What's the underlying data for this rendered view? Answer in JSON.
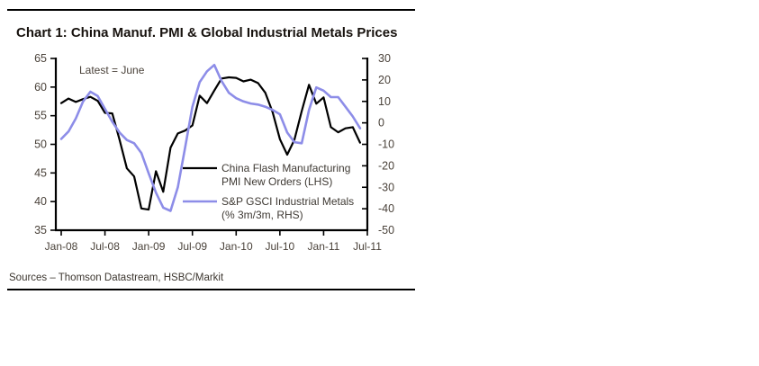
{
  "header": {
    "title": "Chart 1: China Manuf. PMI & Global Industrial Metals Prices"
  },
  "footer": {
    "sources": "Sources – Thomson Datastream, HSBC/Markit"
  },
  "colors": {
    "pmi_line": "#000000",
    "metals_line": "#8d8de8",
    "axis": "#000000",
    "tick_label": "#4a423a",
    "annotation_text": "#4a423a",
    "legend_text": "#3f3a34"
  },
  "chart_data": {
    "type": "line",
    "title": "Chart 1: China Manuf. PMI & Global Industrial Metals Prices",
    "annotation": "Latest = June",
    "grid": false,
    "legend_position": "inside-right-middle",
    "x_tick_labels": [
      "Jan-08",
      "Jul-08",
      "Jan-09",
      "Jul-09",
      "Jan-10",
      "Jul-10",
      "Jan-11",
      "Jul-11"
    ],
    "left_axis": {
      "label": "PMI (LHS)",
      "min": 35,
      "max": 65,
      "ticks": [
        65,
        60,
        55,
        50,
        45,
        40,
        35
      ]
    },
    "right_axis": {
      "label": "% 3m/3m (RHS)",
      "min": -50,
      "max": 30,
      "ticks": [
        30,
        20,
        10,
        0,
        -10,
        -20,
        -30,
        -40,
        -50
      ]
    },
    "x": [
      "Jan-08",
      "Feb-08",
      "Mar-08",
      "Apr-08",
      "May-08",
      "Jun-08",
      "Jul-08",
      "Aug-08",
      "Sep-08",
      "Oct-08",
      "Nov-08",
      "Dec-08",
      "Jan-09",
      "Feb-09",
      "Mar-09",
      "Apr-09",
      "May-09",
      "Jun-09",
      "Jul-09",
      "Aug-09",
      "Sep-09",
      "Oct-09",
      "Nov-09",
      "Dec-09",
      "Jan-10",
      "Feb-10",
      "Mar-10",
      "Apr-10",
      "May-10",
      "Jun-10",
      "Jul-10",
      "Aug-10",
      "Sep-10",
      "Oct-10",
      "Nov-10",
      "Dec-10",
      "Jan-11",
      "Feb-11",
      "Mar-11",
      "Apr-11",
      "May-11",
      "Jun-11"
    ],
    "series": [
      {
        "name": "China Flash Manufacturing PMI New Orders (LHS)",
        "legend_lines": [
          "China Flash Manufacturing",
          "PMI New Orders (LHS)"
        ],
        "axis": "left",
        "color": "#000000",
        "stroke_width": 2.2,
        "values": [
          57.2,
          58.0,
          57.4,
          57.9,
          58.3,
          57.6,
          55.5,
          55.4,
          50.8,
          45.8,
          44.4,
          38.8,
          38.6,
          45.3,
          41.7,
          49.4,
          51.9,
          52.4,
          53.3,
          58.5,
          57.2,
          59.4,
          61.5,
          61.7,
          61.6,
          61.0,
          61.3,
          60.7,
          59.0,
          55.6,
          50.9,
          48.2,
          50.8,
          55.8,
          60.4,
          57.1,
          58.2,
          53.0,
          52.1,
          52.8,
          53.0,
          50.3
        ]
      },
      {
        "name": "S&P GSCI Industrial Metals (% 3m/3m, RHS)",
        "legend_lines": [
          "S&P GSCI Industrial Metals",
          "(% 3m/3m, RHS)"
        ],
        "axis": "right",
        "color": "#8d8de8",
        "stroke_width": 2.6,
        "values": [
          -7.5,
          -4,
          2,
          10,
          14.5,
          12.5,
          6.5,
          0.5,
          -4.5,
          -8,
          -9.5,
          -14,
          -23.5,
          -32.5,
          -39.5,
          -41,
          -30,
          -11.5,
          7.5,
          19,
          24,
          27,
          19.5,
          14,
          11.5,
          10,
          9,
          8.5,
          7.5,
          6,
          4,
          -4.5,
          -9,
          -9.5,
          6,
          16.5,
          15,
          12,
          12,
          7.5,
          3,
          -2.5
        ]
      }
    ]
  }
}
